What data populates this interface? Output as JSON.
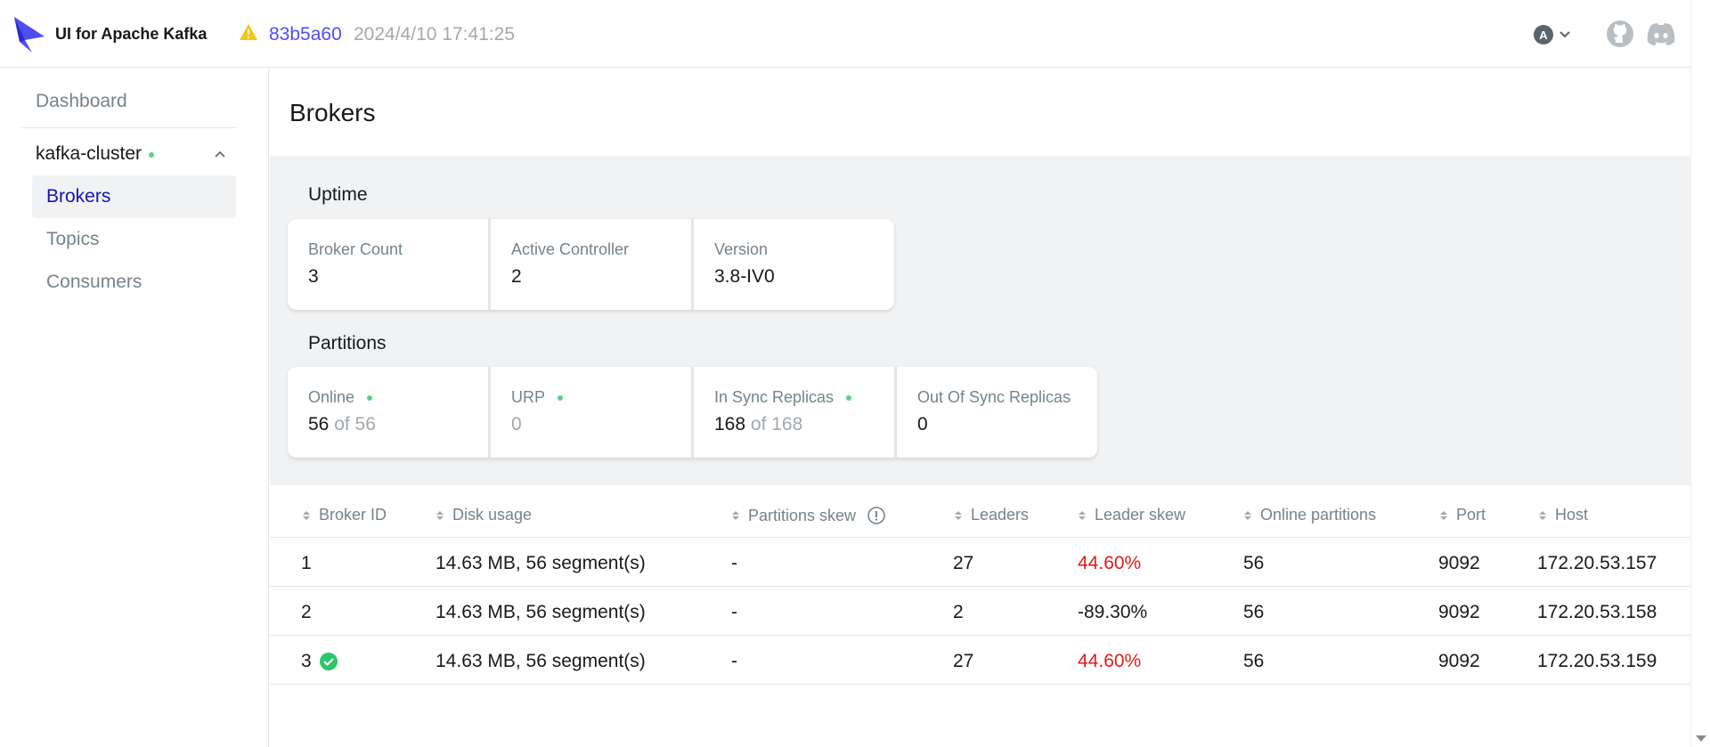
{
  "header": {
    "brand": "UI for Apache Kafka",
    "commit": "83b5a60",
    "build_date": "2024/4/10 17:41:25",
    "user_initial": "A"
  },
  "sidebar": {
    "dashboard": "Dashboard",
    "cluster_name": "kafka-cluster",
    "items": [
      {
        "label": "Brokers",
        "active": true
      },
      {
        "label": "Topics",
        "active": false
      },
      {
        "label": "Consumers",
        "active": false
      }
    ]
  },
  "page_title": "Brokers",
  "uptime": {
    "title": "Uptime",
    "broker_count_label": "Broker Count",
    "broker_count": "3",
    "active_controller_label": "Active Controller",
    "active_controller": "2",
    "version_label": "Version",
    "version": "3.8-IV0"
  },
  "partitions": {
    "title": "Partitions",
    "online_label": "Online",
    "online_value": "56",
    "online_total": "of 56",
    "urp_label": "URP",
    "urp_value": "0",
    "isr_label": "In Sync Replicas",
    "isr_value": "168",
    "isr_total": "of 168",
    "oosr_label": "Out Of Sync Replicas",
    "oosr_value": "0"
  },
  "table": {
    "columns": {
      "broker_id": "Broker ID",
      "disk_usage": "Disk usage",
      "partitions_skew": "Partitions skew",
      "leaders": "Leaders",
      "leader_skew": "Leader skew",
      "online_partitions": "Online partitions",
      "port": "Port",
      "host": "Host"
    },
    "rows": [
      {
        "id": "1",
        "disk": "14.63 MB, 56 segment(s)",
        "pskew": "-",
        "leaders": "27",
        "lskew": "44.60%",
        "online": "56",
        "port": "9092",
        "host": "172.20.53.157"
      },
      {
        "id": "2",
        "disk": "14.63 MB, 56 segment(s)",
        "pskew": "-",
        "leaders": "2",
        "lskew": "-89.30%",
        "online": "56",
        "port": "9092",
        "host": "172.20.53.158"
      },
      {
        "id": "3",
        "disk": "14.63 MB, 56 segment(s)",
        "pskew": "-",
        "leaders": "27",
        "lskew": "44.60%",
        "online": "56",
        "port": "9092",
        "host": "172.20.53.159"
      }
    ]
  },
  "colors": {
    "accent": "#4f4ff0",
    "active_nav": "#1414b8",
    "online_dot": "#5ad28a",
    "skew_red": "#e51a1a"
  }
}
